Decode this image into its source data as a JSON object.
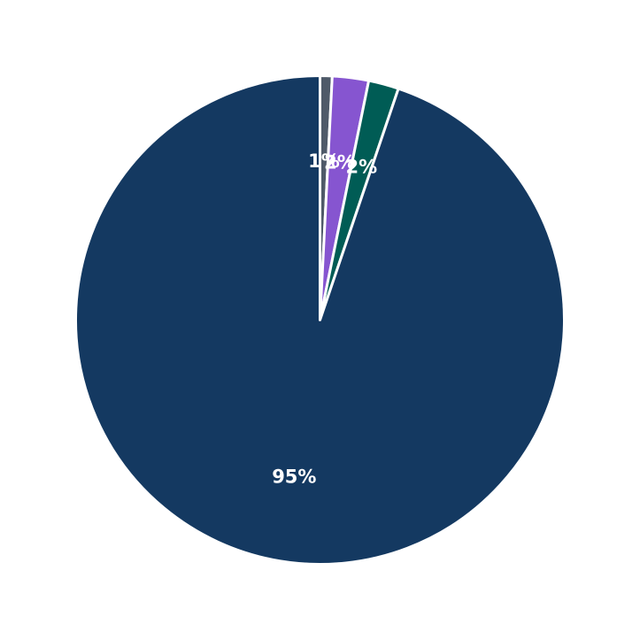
{
  "chart_data": {
    "type": "pie",
    "title": "",
    "start_angle_deg": 90,
    "direction": "clockwise",
    "edge_color": "#ffffff",
    "slices": [
      {
        "value": 0.8,
        "label": "1%",
        "color": "#4f5a69"
      },
      {
        "value": 2.4,
        "label": "2%",
        "color": "#8655d0"
      },
      {
        "value": 2.0,
        "label": "2%",
        "color": "#005c55"
      },
      {
        "value": 94.8,
        "label": "95%",
        "color": "#143961"
      }
    ]
  }
}
